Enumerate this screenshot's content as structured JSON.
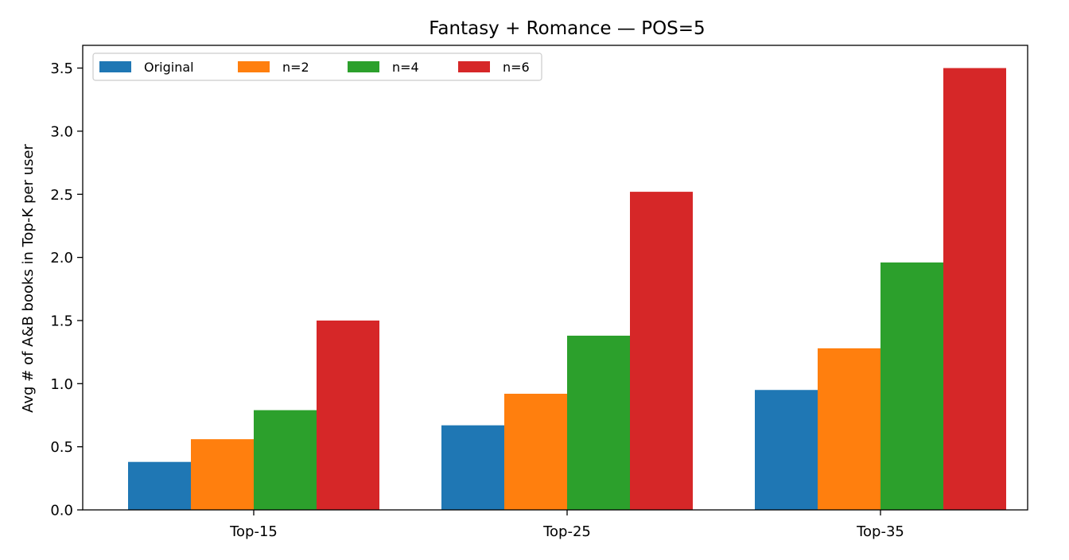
{
  "chart_data": {
    "type": "bar",
    "title": "Fantasy + Romance — POS=5",
    "xlabel": "",
    "ylabel": "Avg # of A&B books in Top-K per user",
    "categories": [
      "Top-15",
      "Top-25",
      "Top-35"
    ],
    "series": [
      {
        "name": "Original",
        "color": "#1f77b4",
        "values": [
          0.38,
          0.67,
          0.95
        ]
      },
      {
        "name": "n=2",
        "color": "#ff7f0e",
        "values": [
          0.56,
          0.92,
          1.28
        ]
      },
      {
        "name": "n=4",
        "color": "#2ca02c",
        "values": [
          0.79,
          1.38,
          1.96
        ]
      },
      {
        "name": "n=6",
        "color": "#d62728",
        "values": [
          1.5,
          2.52,
          3.5
        ]
      }
    ],
    "ylim": [
      0,
      3.68
    ],
    "yticks": [
      "0.0",
      "0.5",
      "1.0",
      "1.5",
      "2.0",
      "2.5",
      "3.0",
      "3.5"
    ],
    "legend": {
      "placement": "top-left",
      "columns": 4
    },
    "grid": false
  }
}
